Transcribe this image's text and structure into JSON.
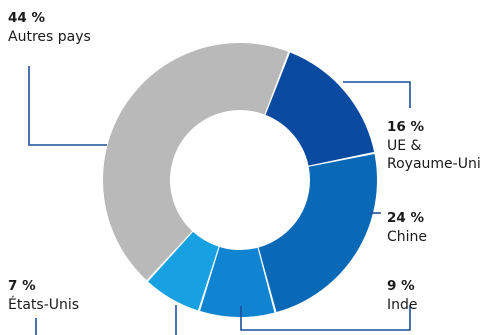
{
  "chart_data": {
    "type": "pie",
    "donut": true,
    "slices": [
      {
        "label": "UE & Royaume-Uni",
        "label_lines": [
          "UE &",
          "Royaume-Uni"
        ],
        "pct_text": "16 %",
        "value": 16,
        "color": "#0a4aa0"
      },
      {
        "label": "Chine",
        "label_lines": [
          "Chine"
        ],
        "pct_text": "24 %",
        "value": 24,
        "color": "#0a69b7"
      },
      {
        "label": "Inde",
        "label_lines": [
          "Inde"
        ],
        "pct_text": "9 %",
        "value": 9,
        "color": "#1184d1"
      },
      {
        "label": "États-Unis",
        "label_lines": [
          "États-Unis"
        ],
        "pct_text": "7 %",
        "value": 7,
        "color": "#17a0e2"
      },
      {
        "label": "Autres pays",
        "label_lines": [
          "Autres pays"
        ],
        "pct_text": "44 %",
        "value": 44,
        "color": "#b9b9b9"
      }
    ],
    "title": "",
    "legend": "none",
    "slice_order": "clockwise from top-right",
    "leader_color": "#1f4e9a"
  }
}
